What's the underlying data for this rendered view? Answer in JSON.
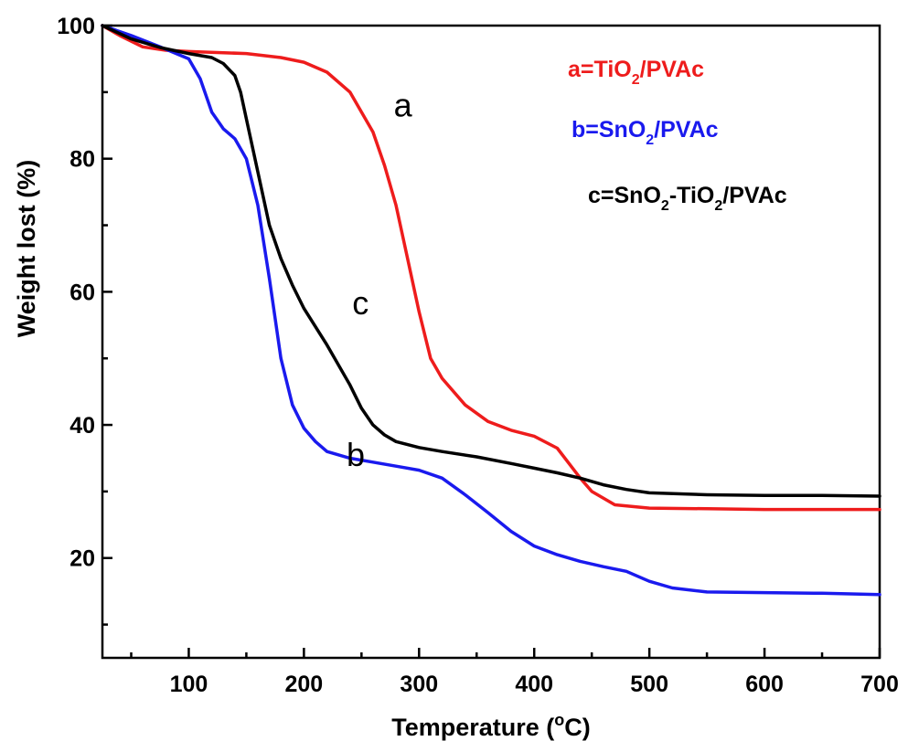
{
  "chart_data": {
    "type": "line",
    "xlabel_main": "Temperature (",
    "xlabel_sup": "o",
    "xlabel_end": "C)",
    "ylabel": "Weight lost (%)",
    "xlim": [
      25,
      700
    ],
    "ylim": [
      5,
      100
    ],
    "x_ticks": [
      100,
      200,
      300,
      400,
      500,
      600,
      700
    ],
    "y_ticks": [
      20,
      40,
      60,
      80,
      100
    ],
    "grid": false,
    "legend_position": "top-right",
    "series": [
      {
        "key": "a",
        "legend_main": "a=TiO",
        "legend_sub": "2",
        "legend_tail": "/PVAc",
        "color": "#ee1c1c",
        "points": [
          [
            25,
            100
          ],
          [
            40,
            98.5
          ],
          [
            60,
            96.8
          ],
          [
            80,
            96.3
          ],
          [
            100,
            96.1
          ],
          [
            150,
            95.8
          ],
          [
            180,
            95.2
          ],
          [
            200,
            94.5
          ],
          [
            220,
            93.0
          ],
          [
            240,
            90.0
          ],
          [
            260,
            84.0
          ],
          [
            270,
            79.0
          ],
          [
            280,
            73.0
          ],
          [
            290,
            65.0
          ],
          [
            300,
            57.0
          ],
          [
            310,
            50.0
          ],
          [
            320,
            47.0
          ],
          [
            340,
            43.0
          ],
          [
            360,
            40.5
          ],
          [
            380,
            39.2
          ],
          [
            400,
            38.3
          ],
          [
            420,
            36.5
          ],
          [
            440,
            32.0
          ],
          [
            450,
            30.0
          ],
          [
            470,
            28.0
          ],
          [
            500,
            27.5
          ],
          [
            550,
            27.4
          ],
          [
            600,
            27.3
          ],
          [
            650,
            27.3
          ],
          [
            700,
            27.3
          ]
        ]
      },
      {
        "key": "b",
        "legend_main": "b=SnO",
        "legend_sub": "2",
        "legend_tail": "/PVAc",
        "color": "#1a1aee",
        "points": [
          [
            25,
            100
          ],
          [
            50,
            98.5
          ],
          [
            75,
            96.8
          ],
          [
            100,
            95.0
          ],
          [
            110,
            92.0
          ],
          [
            120,
            87.0
          ],
          [
            130,
            84.5
          ],
          [
            140,
            83.0
          ],
          [
            150,
            80.0
          ],
          [
            160,
            73.0
          ],
          [
            170,
            62.0
          ],
          [
            180,
            50.0
          ],
          [
            190,
            43.0
          ],
          [
            200,
            39.5
          ],
          [
            210,
            37.5
          ],
          [
            220,
            36.0
          ],
          [
            240,
            35.0
          ],
          [
            260,
            34.4
          ],
          [
            280,
            33.8
          ],
          [
            300,
            33.2
          ],
          [
            320,
            32.0
          ],
          [
            340,
            29.5
          ],
          [
            360,
            26.8
          ],
          [
            380,
            24.0
          ],
          [
            400,
            21.8
          ],
          [
            420,
            20.5
          ],
          [
            440,
            19.5
          ],
          [
            460,
            18.7
          ],
          [
            480,
            18.0
          ],
          [
            500,
            16.5
          ],
          [
            520,
            15.5
          ],
          [
            550,
            14.9
          ],
          [
            600,
            14.8
          ],
          [
            650,
            14.7
          ],
          [
            700,
            14.5
          ]
        ]
      },
      {
        "key": "c",
        "legend_main": "c=SnO",
        "legend_sub": "2",
        "legend_tail": "-TiO",
        "legend_sub2": "2",
        "legend_tail2": "/PVAc",
        "color": "#000000",
        "points": [
          [
            25,
            100
          ],
          [
            50,
            98.0
          ],
          [
            75,
            96.7
          ],
          [
            100,
            95.8
          ],
          [
            120,
            95.2
          ],
          [
            130,
            94.3
          ],
          [
            140,
            92.5
          ],
          [
            145,
            90.0
          ],
          [
            150,
            86.0
          ],
          [
            160,
            78.0
          ],
          [
            170,
            70.0
          ],
          [
            180,
            65.0
          ],
          [
            190,
            61.0
          ],
          [
            200,
            57.5
          ],
          [
            220,
            52.0
          ],
          [
            240,
            46.0
          ],
          [
            250,
            42.5
          ],
          [
            260,
            40.0
          ],
          [
            270,
            38.5
          ],
          [
            280,
            37.5
          ],
          [
            300,
            36.6
          ],
          [
            320,
            36.0
          ],
          [
            350,
            35.2
          ],
          [
            380,
            34.2
          ],
          [
            400,
            33.5
          ],
          [
            420,
            32.8
          ],
          [
            440,
            32.0
          ],
          [
            460,
            31.0
          ],
          [
            480,
            30.3
          ],
          [
            500,
            29.8
          ],
          [
            550,
            29.5
          ],
          [
            600,
            29.4
          ],
          [
            650,
            29.4
          ],
          [
            700,
            29.3
          ]
        ]
      }
    ],
    "curve_labels": [
      {
        "text": "a",
        "x": 278,
        "y": 88,
        "anchor": "start"
      },
      {
        "text": "c",
        "x": 242,
        "y": 58.3,
        "anchor": "start"
      },
      {
        "text": "b",
        "x": 237,
        "y": 35.5,
        "anchor": "start"
      }
    ]
  }
}
